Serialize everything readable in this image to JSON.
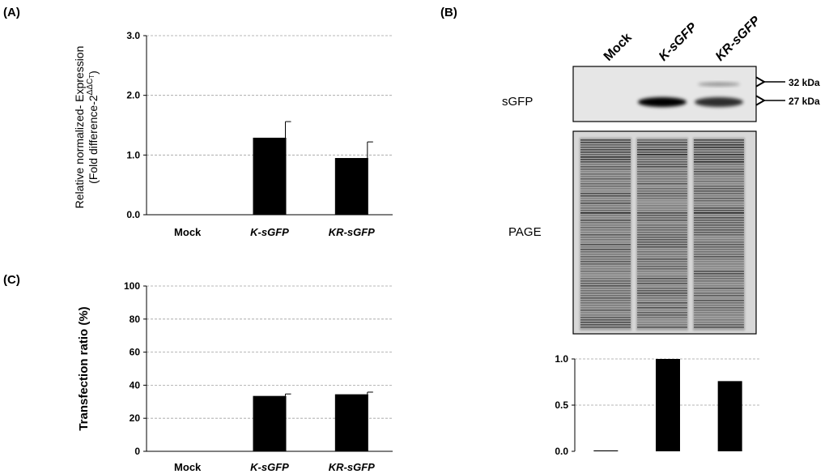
{
  "panels": {
    "a_label": "(A)",
    "b_label": "(B)",
    "c_label": "(C)"
  },
  "chart_data": [
    {
      "id": "A",
      "type": "bar",
      "categories": [
        "Mock",
        "K-sGFP",
        "KR-sGFP"
      ],
      "italic_categories": [
        false,
        true,
        true
      ],
      "values": [
        0.0,
        1.29,
        0.95
      ],
      "error": [
        0.0,
        0.27,
        0.27
      ],
      "ylabel_line1": "Relative normalized- Expression",
      "ylabel_line2": "(Fold difference-2",
      "ylabel_sup": "ΔΔC",
      "ylabel_sub": "T",
      "ylabel_close": ")",
      "ylim": [
        0,
        3
      ],
      "yticks": [
        0,
        1,
        2,
        3
      ],
      "ytick_labels": [
        "0.0",
        "1.0",
        "2.0",
        "3.0"
      ],
      "grid": true
    },
    {
      "id": "C",
      "type": "bar",
      "categories": [
        "Mock",
        "K-sGFP",
        "KR-sGFP"
      ],
      "italic_categories": [
        false,
        true,
        true
      ],
      "values": [
        0,
        33.5,
        34.5
      ],
      "error": [
        0,
        1.2,
        1.3
      ],
      "ylabel": "Transfection ratio (%)",
      "ylim": [
        0,
        100
      ],
      "yticks": [
        0,
        20,
        40,
        60,
        80,
        100
      ],
      "ytick_labels": [
        "0",
        "20",
        "40",
        "60",
        "80",
        "100"
      ],
      "grid": true
    },
    {
      "id": "B-quant",
      "type": "bar",
      "categories": [
        "Mock",
        "K-sGFP",
        "KR-sGFP"
      ],
      "values": [
        0.01,
        1.0,
        0.76
      ],
      "ylim": [
        0,
        1
      ],
      "yticks": [
        0,
        0.5,
        1
      ],
      "ytick_labels": [
        "0.0",
        "0.5",
        "1.0"
      ],
      "grid": true
    }
  ],
  "blot": {
    "lanes": [
      "Mock",
      "K-sGFP",
      "KR-sGFP"
    ],
    "italic_lanes": [
      false,
      true,
      true
    ],
    "sgfp_label": "sGFP",
    "page_label": "PAGE",
    "marker_upper": "32 kDa",
    "marker_lower": "27 kDa",
    "band_27_intensity": [
      0,
      1.0,
      0.8
    ],
    "band_32_intensity": [
      0,
      0,
      0.35
    ]
  }
}
